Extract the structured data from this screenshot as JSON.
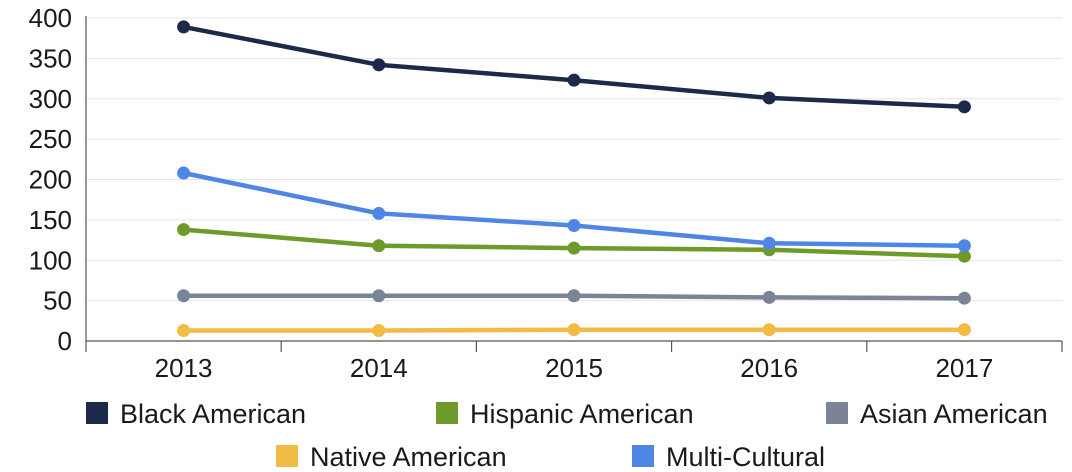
{
  "chart_data": {
    "type": "line",
    "categories": [
      "2013",
      "2014",
      "2015",
      "2016",
      "2017"
    ],
    "ylim": [
      0,
      400
    ],
    "yticks": [
      0,
      50,
      100,
      150,
      200,
      250,
      300,
      350,
      400
    ],
    "grid": true,
    "legend_position": "bottom",
    "title": "",
    "xlabel": "",
    "ylabel": "",
    "series": [
      {
        "name": "Black American",
        "color": "#1b2a4a",
        "values": [
          389,
          342,
          323,
          301,
          290
        ]
      },
      {
        "name": "Hispanic American",
        "color": "#6e9a2a",
        "values": [
          138,
          118,
          115,
          113,
          105
        ]
      },
      {
        "name": "Asian American",
        "color": "#7a8496",
        "values": [
          56,
          56,
          56,
          54,
          53
        ]
      },
      {
        "name": "Native American",
        "color": "#f1bb45",
        "values": [
          13,
          13,
          14,
          14,
          14
        ]
      },
      {
        "name": "Multi-Cultural",
        "color": "#4f86e6",
        "values": [
          208,
          158,
          143,
          121,
          118
        ]
      }
    ]
  }
}
